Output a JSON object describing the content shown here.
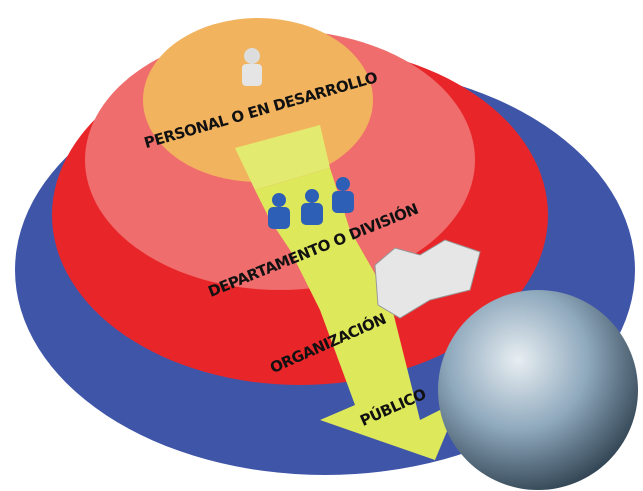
{
  "rings": [
    {
      "label": "PERSONAL O EN DESARROLLO"
    },
    {
      "label": "DEPARTAMENTO O DIVISIÓN"
    },
    {
      "label": "ORGANIZACIÓN"
    },
    {
      "label": "PÚBLICO"
    }
  ]
}
